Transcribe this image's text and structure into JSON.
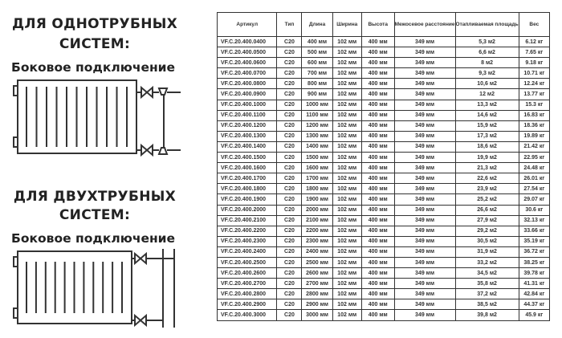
{
  "one_pipe": {
    "title_line1": "ДЛЯ ОДНОТРУБНЫХ",
    "title_line2": "СИСТЕМ:",
    "connection": "Боковое подключение",
    "diagram_icon": "radiator-one-pipe-side-connection"
  },
  "two_pipe": {
    "title_line1": "ДЛЯ ДВУХТРУБНЫХ",
    "title_line2": "СИСТЕМ:",
    "connection": "Боковое подключение",
    "diagram_icon": "radiator-two-pipe-side-connection"
  },
  "table": {
    "headers": [
      "Артикул",
      "Тип",
      "Длина",
      "Ширина",
      "Высота",
      "Межосевое расстояние",
      "Отапливаемая площадь",
      "Вес"
    ],
    "rows": [
      [
        "VF.C.20.400.0400",
        "C20",
        "400 мм",
        "102 мм",
        "400 мм",
        "349 мм",
        "5,3 м2",
        "6.12 кг"
      ],
      [
        "VF.C.20.400.0500",
        "C20",
        "500 мм",
        "102 мм",
        "400 мм",
        "349 мм",
        "6,6 м2",
        "7.65 кг"
      ],
      [
        "VF.C.20.400.0600",
        "C20",
        "600 мм",
        "102 мм",
        "400 мм",
        "349 мм",
        "8 м2",
        "9.18 кг"
      ],
      [
        "VF.C.20.400.0700",
        "C20",
        "700 мм",
        "102 мм",
        "400 мм",
        "349 мм",
        "9,3 м2",
        "10.71 кг"
      ],
      [
        "VF.C.20.400.0800",
        "C20",
        "800 мм",
        "102 мм",
        "400 мм",
        "349 мм",
        "10,6 м2",
        "12.24 кг"
      ],
      [
        "VF.C.20.400.0900",
        "C20",
        "900 мм",
        "102 мм",
        "400 мм",
        "349 мм",
        "12 м2",
        "13.77 кг"
      ],
      [
        "VF.C.20.400.1000",
        "C20",
        "1000 мм",
        "102 мм",
        "400 мм",
        "349 мм",
        "13,3 м2",
        "15.3 кг"
      ],
      [
        "VF.C.20.400.1100",
        "C20",
        "1100 мм",
        "102 мм",
        "400 мм",
        "349 мм",
        "14,6 м2",
        "16.83 кг"
      ],
      [
        "VF.C.20.400.1200",
        "C20",
        "1200 мм",
        "102 мм",
        "400 мм",
        "349 мм",
        "15,9 м2",
        "18.36 кг"
      ],
      [
        "VF.C.20.400.1300",
        "C20",
        "1300 мм",
        "102 мм",
        "400 мм",
        "349 мм",
        "17,3 м2",
        "19.89 кг"
      ],
      [
        "VF.C.20.400.1400",
        "C20",
        "1400 мм",
        "102 мм",
        "400 мм",
        "349 мм",
        "18,6 м2",
        "21.42 кг"
      ],
      [
        "VF.C.20.400.1500",
        "C20",
        "1500 мм",
        "102 мм",
        "400 мм",
        "349 мм",
        "19,9 м2",
        "22.95 кг"
      ],
      [
        "VF.C.20.400.1600",
        "C20",
        "1600 мм",
        "102 мм",
        "400 мм",
        "349 мм",
        "21,3 м2",
        "24.48 кг"
      ],
      [
        "VF.C.20.400.1700",
        "C20",
        "1700 мм",
        "102 мм",
        "400 мм",
        "349 мм",
        "22,6 м2",
        "26.01 кг"
      ],
      [
        "VF.C.20.400.1800",
        "C20",
        "1800 мм",
        "102 мм",
        "400 мм",
        "349 мм",
        "23,9 м2",
        "27.54 кг"
      ],
      [
        "VF.C.20.400.1900",
        "C20",
        "1900 мм",
        "102 мм",
        "400 мм",
        "349 мм",
        "25,2 м2",
        "29.07 кг"
      ],
      [
        "VF.C.20.400.2000",
        "C20",
        "2000 мм",
        "102 мм",
        "400 мм",
        "349 мм",
        "26,6 м2",
        "30.6 кг"
      ],
      [
        "VF.C.20.400.2100",
        "C20",
        "2100 мм",
        "102 мм",
        "400 мм",
        "349 мм",
        "27,9 м2",
        "32.13 кг"
      ],
      [
        "VF.C.20.400.2200",
        "C20",
        "2200 мм",
        "102 мм",
        "400 мм",
        "349 мм",
        "29,2 м2",
        "33.66 кг"
      ],
      [
        "VF.C.20.400.2300",
        "C20",
        "2300 мм",
        "102 мм",
        "400 мм",
        "349 мм",
        "30,5 м2",
        "35.19 кг"
      ],
      [
        "VF.C.20.400.2400",
        "C20",
        "2400 мм",
        "102 мм",
        "400 мм",
        "349 мм",
        "31,9 м2",
        "36.72 кг"
      ],
      [
        "VF.C.20.400.2500",
        "C20",
        "2500 мм",
        "102 мм",
        "400 мм",
        "349 мм",
        "33,2 м2",
        "38.25 кг"
      ],
      [
        "VF.C.20.400.2600",
        "C20",
        "2600 мм",
        "102 мм",
        "400 мм",
        "349 мм",
        "34,5 м2",
        "39.78 кг"
      ],
      [
        "VF.C.20.400.2700",
        "C20",
        "2700 мм",
        "102 мм",
        "400 мм",
        "349 мм",
        "35,8 м2",
        "41.31 кг"
      ],
      [
        "VF.C.20.400.2800",
        "C20",
        "2800 мм",
        "102 мм",
        "400 мм",
        "349 мм",
        "37,2 м2",
        "42.84 кг"
      ],
      [
        "VF.C.20.400.2900",
        "C20",
        "2900 мм",
        "102 мм",
        "400 мм",
        "349 мм",
        "38,5 м2",
        "44.37 кг"
      ],
      [
        "VF.C.20.400.3000",
        "C20",
        "3000 мм",
        "102 мм",
        "400 мм",
        "349 мм",
        "39,8 м2",
        "45.9 кг"
      ]
    ]
  }
}
